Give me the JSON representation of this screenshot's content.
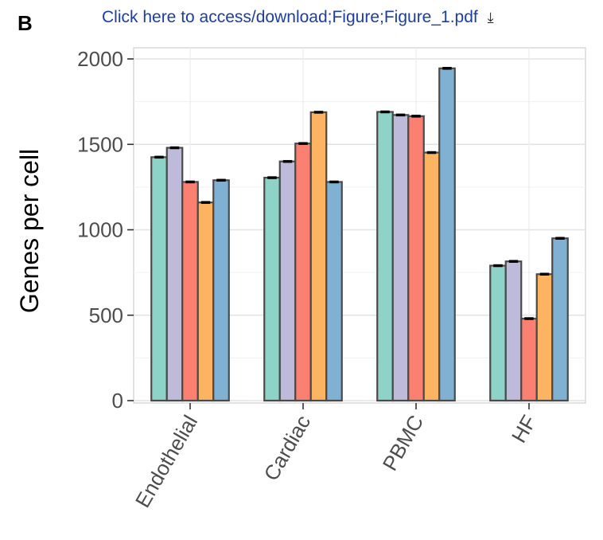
{
  "header": {
    "panel_label": "B",
    "download_text": "Click here to access/download;Figure;Figure_1.pdf",
    "download_icon": "download-icon"
  },
  "chart_data": {
    "type": "bar",
    "title": "",
    "xlabel": "",
    "ylabel": "Genes per cell",
    "ylim": [
      0,
      2000
    ],
    "yticks": [
      0,
      500,
      1000,
      1500,
      2000
    ],
    "grid": true,
    "categories": [
      "Endothelial",
      "Cardiac",
      "PBMC",
      "HF"
    ],
    "series_colors": [
      "#8dd3c7",
      "#bebada",
      "#fb8072",
      "#fdb462",
      "#80b1d3"
    ],
    "series": [
      {
        "values": [
          1425,
          1305,
          1690,
          790
        ]
      },
      {
        "values": [
          1480,
          1400,
          1672,
          815
        ]
      },
      {
        "values": [
          1280,
          1505,
          1665,
          480
        ]
      },
      {
        "values": [
          1160,
          1688,
          1452,
          740
        ]
      },
      {
        "values": [
          1290,
          1280,
          1945,
          950
        ]
      }
    ],
    "error": 6
  }
}
